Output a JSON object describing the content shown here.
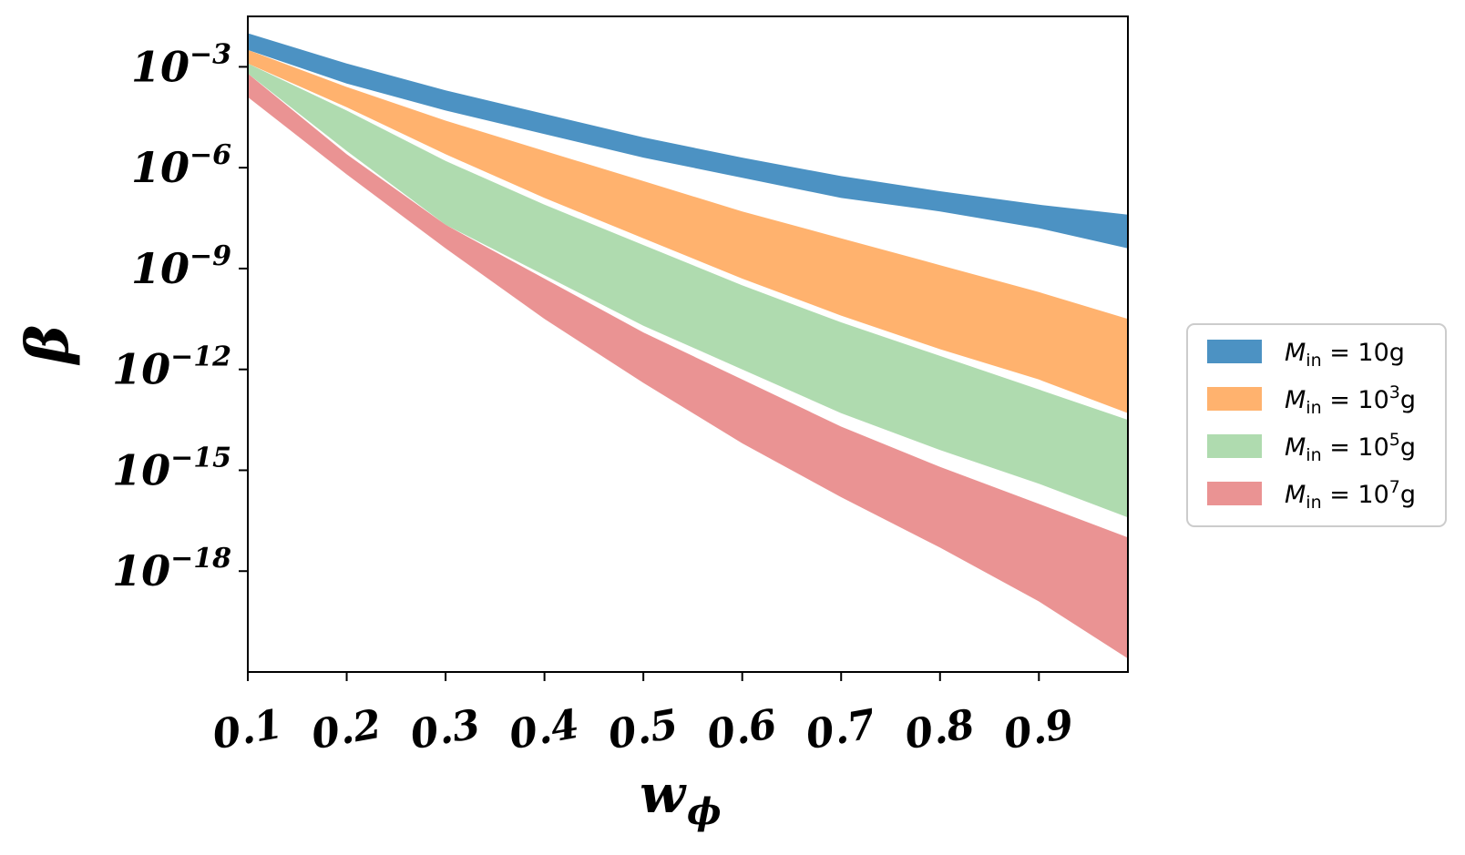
{
  "chart_data": {
    "type": "area",
    "xlabel": "w",
    "xlabel_sub": "ϕ",
    "ylabel": "β",
    "xlim": [
      0.1,
      0.99
    ],
    "ylim_log10": [
      -21,
      -1.5
    ],
    "yscale": "log",
    "x_ticks": [
      0.1,
      0.2,
      0.3,
      0.4,
      0.5,
      0.6,
      0.7,
      0.8,
      0.9
    ],
    "x_tick_labels": [
      "0.1",
      "0.2",
      "0.3",
      "0.4",
      "0.5",
      "0.6",
      "0.7",
      "0.8",
      "0.9"
    ],
    "y_ticks_log10": [
      -3,
      -6,
      -9,
      -12,
      -15,
      -18
    ],
    "y_tick_labels": [
      {
        "base": "10",
        "exp": "−3"
      },
      {
        "base": "10",
        "exp": "−6"
      },
      {
        "base": "10",
        "exp": "−9"
      },
      {
        "base": "10",
        "exp": "−12"
      },
      {
        "base": "10",
        "exp": "−15"
      },
      {
        "base": "10",
        "exp": "−18"
      }
    ],
    "legend_position": "right",
    "x": [
      0.1,
      0.2,
      0.3,
      0.4,
      0.5,
      0.6,
      0.7,
      0.8,
      0.9,
      0.99
    ],
    "series": [
      {
        "legend": {
          "sym": "M",
          "sub": "in",
          "rest": " = 10",
          "sup": "",
          "unit": "g"
        },
        "color": "#1f77b4",
        "opacity": 0.8,
        "upper_log10": [
          -2.0,
          -2.9,
          -3.7,
          -4.4,
          -5.1,
          -5.7,
          -6.25,
          -6.7,
          -7.1,
          -7.4
        ],
        "lower_log10": [
          -2.5,
          -3.5,
          -4.3,
          -5.0,
          -5.7,
          -6.3,
          -6.9,
          -7.3,
          -7.8,
          -8.4
        ]
      },
      {
        "legend": {
          "sym": "M",
          "sub": "in",
          "rest": " = 10",
          "sup": "3",
          "unit": "g"
        },
        "color": "#ff7f0e",
        "opacity": 0.6,
        "upper_log10": [
          -2.5,
          -3.6,
          -4.6,
          -5.5,
          -6.4,
          -7.3,
          -8.1,
          -8.9,
          -9.7,
          -10.5
        ],
        "lower_log10": [
          -2.9,
          -4.2,
          -5.6,
          -6.9,
          -8.1,
          -9.3,
          -10.4,
          -11.4,
          -12.3,
          -13.3
        ]
      },
      {
        "legend": {
          "sym": "M",
          "sub": "in",
          "rest": " = 10",
          "sup": "5",
          "unit": "g"
        },
        "color": "#2ca02c",
        "opacity": 0.38,
        "upper_log10": [
          -2.9,
          -4.3,
          -5.8,
          -7.1,
          -8.3,
          -9.5,
          -10.6,
          -11.6,
          -12.6,
          -13.5
        ],
        "lower_log10": [
          -3.2,
          -5.5,
          -7.7,
          -9.2,
          -10.7,
          -12.0,
          -13.3,
          -14.4,
          -15.4,
          -16.4
        ]
      },
      {
        "legend": {
          "sym": "M",
          "sub": "in",
          "rest": " = 10",
          "sup": "7",
          "unit": "g"
        },
        "color": "#d62728",
        "opacity": 0.5,
        "upper_log10": [
          -3.2,
          -5.6,
          -7.7,
          -9.3,
          -10.9,
          -12.3,
          -13.7,
          -14.9,
          -16.0,
          -17.0
        ],
        "lower_log10": [
          -3.9,
          -6.2,
          -8.4,
          -10.5,
          -12.4,
          -14.2,
          -15.8,
          -17.3,
          -18.9,
          -20.6
        ]
      }
    ]
  }
}
